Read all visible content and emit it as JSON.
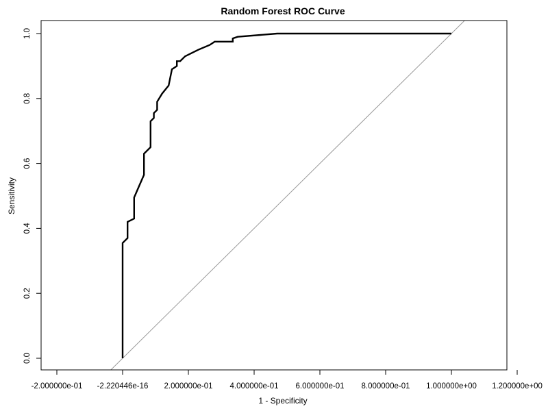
{
  "chart_data": {
    "type": "line",
    "title": "Random Forest ROC Curve",
    "xlabel": "1 - Specificity",
    "ylabel": "Sensitivity",
    "xlim": [
      -0.2,
      1.2
    ],
    "ylim": [
      0.0,
      1.0
    ],
    "grid": false,
    "legend": "none",
    "x_ticks": [
      {
        "value": -0.2,
        "label": "-2.000000e-01"
      },
      {
        "value": 0.0,
        "label": "-2.220446e-16"
      },
      {
        "value": 0.2,
        "label": "2.000000e-01"
      },
      {
        "value": 0.4,
        "label": "4.000000e-01"
      },
      {
        "value": 0.6,
        "label": "6.000000e-01"
      },
      {
        "value": 0.8,
        "label": "8.000000e-01"
      },
      {
        "value": 1.0,
        "label": "1.000000e+00"
      },
      {
        "value": 1.2,
        "label": "1.200000e+00"
      }
    ],
    "y_ticks": [
      {
        "value": 0.0,
        "label": "0.0"
      },
      {
        "value": 0.2,
        "label": "0.2"
      },
      {
        "value": 0.4,
        "label": "0.4"
      },
      {
        "value": 0.6,
        "label": "0.6"
      },
      {
        "value": 0.8,
        "label": "0.8"
      },
      {
        "value": 1.0,
        "label": "1.0"
      }
    ],
    "series": [
      {
        "color": "#000000",
        "x": [
          0.0,
          0.0,
          0.015,
          0.015,
          0.035,
          0.035,
          0.05,
          0.05,
          0.065,
          0.065,
          0.085,
          0.085,
          0.095,
          0.095,
          0.105,
          0.105,
          0.12,
          0.12,
          0.14,
          0.14,
          0.15,
          0.15,
          0.165,
          0.165,
          0.175,
          0.175,
          0.19,
          0.19,
          0.21,
          0.21,
          0.23,
          0.23,
          0.265,
          0.265,
          0.28,
          0.28,
          0.335,
          0.335,
          0.35,
          0.35,
          0.47,
          0.47,
          0.52,
          0.52,
          0.58,
          0.58,
          0.6,
          0.6,
          1.0
        ],
        "y": [
          0.0,
          0.355,
          0.37,
          0.42,
          0.43,
          0.495,
          0.53,
          0.53,
          0.565,
          0.63,
          0.65,
          0.73,
          0.74,
          0.755,
          0.765,
          0.79,
          0.815,
          0.815,
          0.84,
          0.84,
          0.89,
          0.89,
          0.9,
          0.915,
          0.915,
          0.915,
          0.93,
          0.93,
          0.94,
          0.94,
          0.95,
          0.95,
          0.965,
          0.965,
          0.975,
          0.975,
          0.975,
          0.985,
          0.99,
          0.99,
          1.0,
          1.0,
          1.0,
          1.0,
          1.0,
          1.0,
          1.0,
          1.0,
          1.0
        ]
      },
      {
        "color": "#999999",
        "x": [
          -0.2,
          1.2
        ],
        "y": [
          -0.2,
          1.2
        ]
      }
    ]
  }
}
